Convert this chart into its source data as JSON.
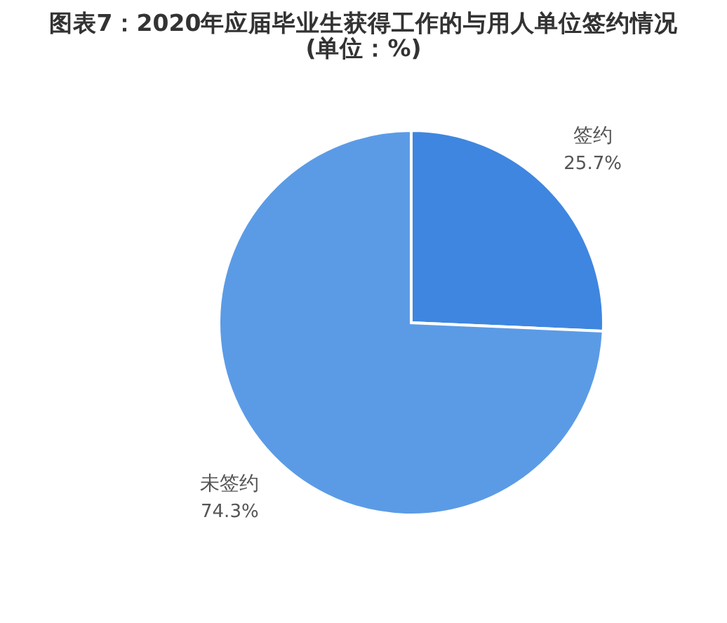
{
  "chart_data": {
    "type": "pie",
    "title": "图表7：2020年应届毕业生获得工作的与用人单位签约情况(单位：%)",
    "categories": [
      "签约",
      "未签约"
    ],
    "values": [
      25.7,
      74.3
    ],
    "colors": [
      "#3f86e0",
      "#5b9be6"
    ],
    "value_labels": [
      "25.7%",
      "74.3%"
    ]
  }
}
